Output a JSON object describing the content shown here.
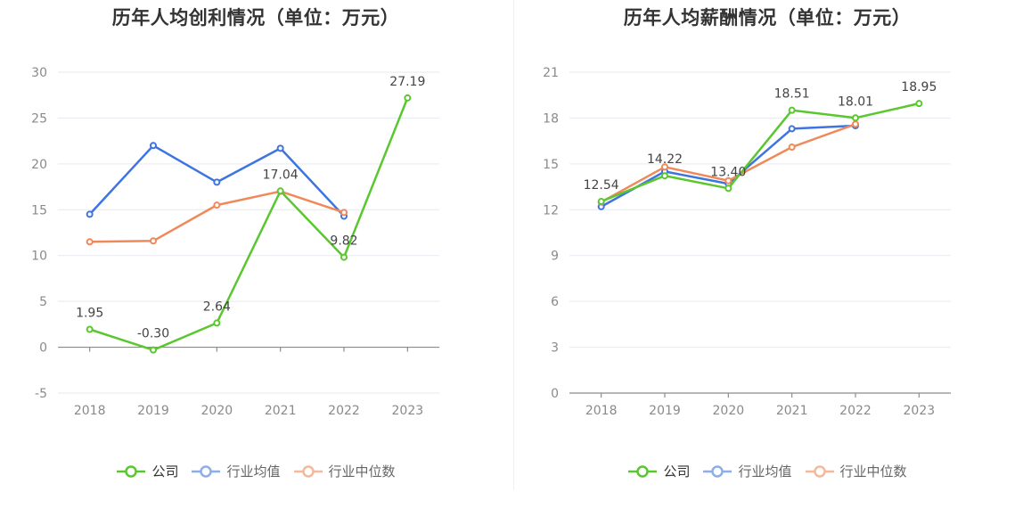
{
  "chart_data": [
    {
      "type": "line",
      "title": "历年人均创利情况（单位：万元）",
      "categories": [
        "2018",
        "2019",
        "2020",
        "2021",
        "2022",
        "2023"
      ],
      "ylim": [
        -5,
        30
      ],
      "yticks": [
        -5,
        0,
        5,
        10,
        15,
        20,
        25,
        30
      ],
      "grid": true,
      "legend_position": "bottom-center",
      "series": [
        {
          "name": "公司",
          "color": "#5ac72f",
          "values": [
            1.95,
            -0.3,
            2.64,
            17.04,
            9.82,
            27.19
          ],
          "labels": [
            "1.95",
            "-0.30",
            "2.64",
            "17.04",
            "9.82",
            "27.19"
          ]
        },
        {
          "name": "行业均值",
          "color": "#3e74e0",
          "values": [
            14.5,
            22.0,
            18.0,
            21.7,
            14.3,
            null
          ]
        },
        {
          "name": "行业中位数",
          "color": "#f0895a",
          "values": [
            11.5,
            11.6,
            15.5,
            17.0,
            14.7,
            null
          ]
        }
      ]
    },
    {
      "type": "line",
      "title": "历年人均薪酬情况（单位：万元）",
      "categories": [
        "2018",
        "2019",
        "2020",
        "2021",
        "2022",
        "2023"
      ],
      "ylim": [
        0,
        21
      ],
      "yticks": [
        0,
        3,
        6,
        9,
        12,
        15,
        18,
        21
      ],
      "grid": true,
      "legend_position": "bottom-center",
      "series": [
        {
          "name": "公司",
          "color": "#5ac72f",
          "values": [
            12.54,
            14.22,
            13.4,
            18.51,
            18.01,
            18.95
          ],
          "labels": [
            "12.54",
            "14.22",
            "13.40",
            "18.51",
            "18.01",
            "18.95"
          ]
        },
        {
          "name": "行业均值",
          "color": "#3e74e0",
          "values": [
            12.2,
            14.5,
            13.7,
            17.3,
            17.5,
            null
          ]
        },
        {
          "name": "行业中位数",
          "color": "#f0895a",
          "values": [
            12.5,
            14.8,
            13.9,
            16.1,
            17.6,
            null
          ]
        }
      ]
    }
  ]
}
